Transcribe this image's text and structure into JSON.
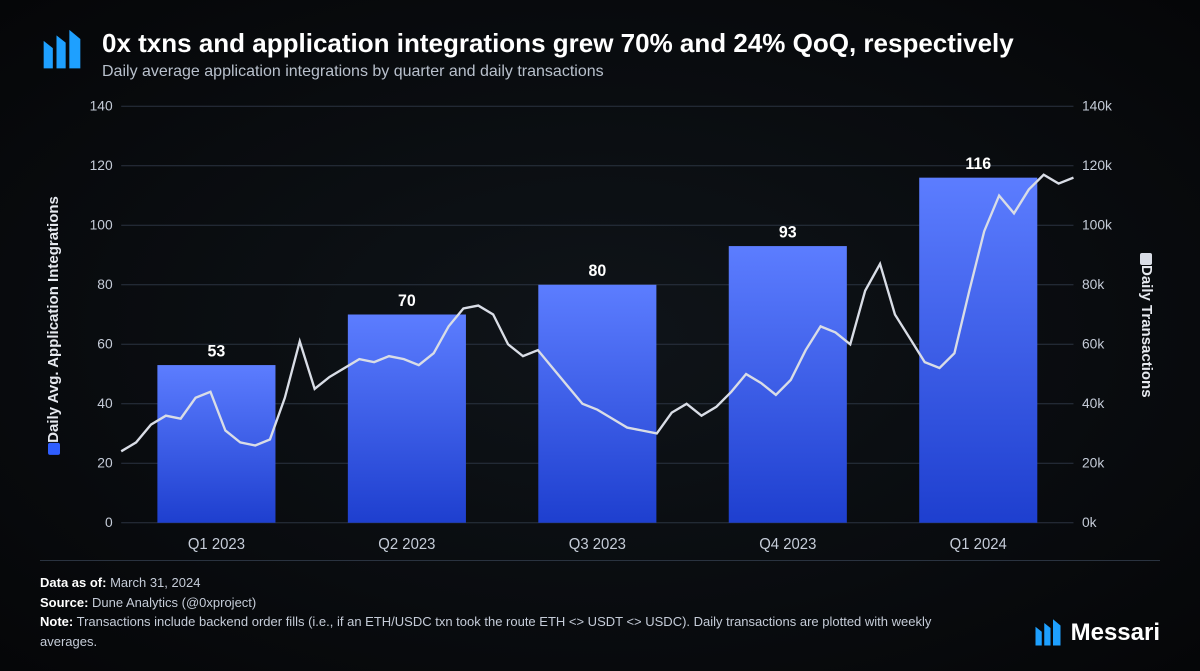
{
  "header": {
    "title": "0x txns and application integrations grew 70% and 24% QoQ, respectively",
    "subtitle": "Daily average application integrations by quarter and daily transactions"
  },
  "chart": {
    "type": "bar+line",
    "background_color": "#0a0e13",
    "grid_color": "#2a3340",
    "text_color": "#c5ccd8",
    "left_axis": {
      "label": "Daily Avg. Application Integrations",
      "swatch_color": "#2f5eff",
      "min": 0,
      "max": 140,
      "step": 20
    },
    "right_axis": {
      "label": "Daily Transactions",
      "swatch_color": "#d9dde6",
      "min": 0,
      "max": 140000,
      "step": 20000,
      "tick_format": "k"
    },
    "categories": [
      "Q1 2023",
      "Q2 2023",
      "Q3 2023",
      "Q4 2023",
      "Q1 2024"
    ],
    "bars": {
      "values": [
        53,
        70,
        80,
        93,
        116
      ],
      "labels": [
        "53",
        "70",
        "80",
        "93",
        "116"
      ],
      "fill_top": "#5c7dff",
      "fill_bottom": "#1e3fcf",
      "width_frac": 0.62
    },
    "line": {
      "color": "#d9dde6",
      "width": 2.2,
      "points": [
        24,
        27,
        33,
        36,
        35,
        42,
        44,
        31,
        27,
        26,
        28,
        42,
        61,
        45,
        49,
        52,
        55,
        54,
        56,
        55,
        53,
        57,
        66,
        72,
        73,
        70,
        60,
        56,
        58,
        52,
        46,
        40,
        38,
        35,
        32,
        31,
        30,
        37,
        40,
        36,
        39,
        44,
        50,
        47,
        43,
        48,
        58,
        66,
        64,
        60,
        78,
        87,
        70,
        62,
        54,
        52,
        57,
        78,
        98,
        110,
        104,
        112,
        117,
        114,
        116
      ]
    }
  },
  "footer": {
    "data_as_of_key": "Data as of:",
    "data_as_of": "March 31, 2024",
    "source_key": "Source:",
    "source": "Dune Analytics (@0xproject)",
    "note_key": "Note:",
    "note": "Transactions include backend order fills (i.e., if an ETH/USDC txn took the route ETH <> USDT <> USDC). Daily transactions are plotted with weekly averages.",
    "brand": "Messari",
    "brand_color": "#1ea0ff"
  }
}
